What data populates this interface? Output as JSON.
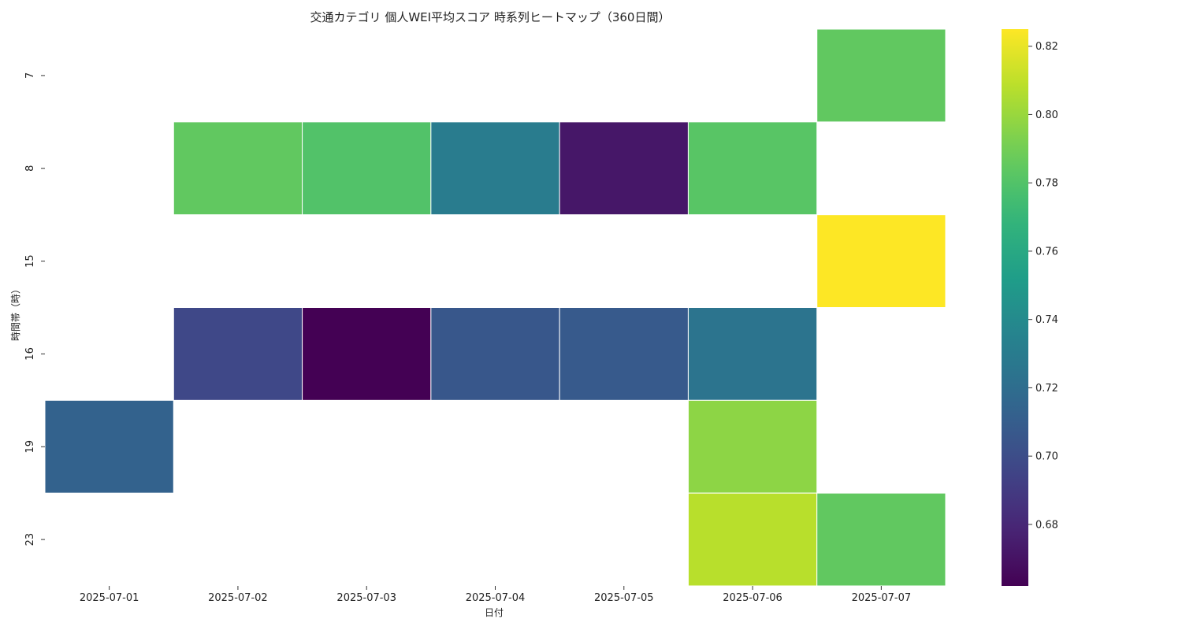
{
  "chart_data": {
    "type": "heatmap",
    "title": "交通カテゴリ 個人WEI平均スコア 時系列ヒートマップ（360日間）",
    "xlabel": "日付",
    "ylabel": "時間帯（時）",
    "x": [
      "2025-07-01",
      "2025-07-02",
      "2025-07-03",
      "2025-07-04",
      "2025-07-05",
      "2025-07-06",
      "2025-07-07"
    ],
    "y": [
      "7",
      "8",
      "15",
      "16",
      "19",
      "23"
    ],
    "values": [
      [
        null,
        null,
        null,
        null,
        null,
        null,
        0.785
      ],
      [
        null,
        0.785,
        0.78,
        0.73,
        0.672,
        0.782,
        null
      ],
      [
        null,
        null,
        null,
        null,
        null,
        null,
        0.825
      ],
      [
        null,
        0.697,
        0.662,
        0.706,
        0.708,
        0.725,
        null
      ],
      [
        0.713,
        null,
        null,
        null,
        null,
        0.797,
        null
      ],
      [
        null,
        null,
        null,
        null,
        null,
        0.808,
        0.785
      ]
    ],
    "colormap": "viridis",
    "vmin": 0.662,
    "vmax": 0.825,
    "colorbar_ticks": [
      "0.68",
      "0.70",
      "0.72",
      "0.74",
      "0.76",
      "0.78",
      "0.80",
      "0.82"
    ],
    "grid": false
  }
}
